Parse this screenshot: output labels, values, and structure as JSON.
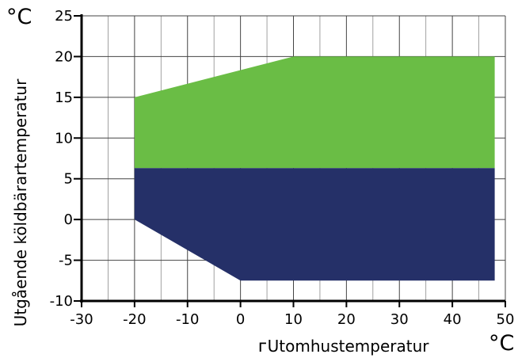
{
  "chart_data": {
    "type": "area",
    "xlabel": "ᴦUtomhustemperatur",
    "ylabel": "Utgående köldbärartemperatur",
    "x_unit": "°C",
    "y_unit": "°C",
    "xlim": [
      -30,
      50
    ],
    "ylim": [
      -10,
      25
    ],
    "xticks": [
      -30,
      -20,
      -10,
      0,
      10,
      20,
      30,
      40,
      50
    ],
    "yticks": [
      -10,
      -5,
      0,
      5,
      10,
      15,
      20,
      25
    ],
    "grid": true,
    "series": [
      {
        "color": "#6abd45",
        "points": [
          [
            -20,
            6.3
          ],
          [
            -20,
            15
          ],
          [
            10,
            20
          ],
          [
            48,
            20
          ],
          [
            48,
            6.3
          ]
        ]
      },
      {
        "color": "#253068",
        "points": [
          [
            -20,
            0
          ],
          [
            -20,
            6.3
          ],
          [
            48,
            6.3
          ],
          [
            48,
            -7.5
          ],
          [
            0,
            -7.5
          ]
        ]
      }
    ]
  }
}
